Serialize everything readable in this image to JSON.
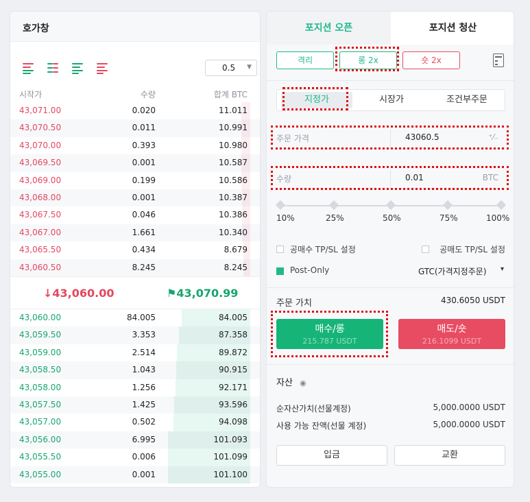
{
  "order_book": {
    "title": "호가창",
    "depth_value": "0.5",
    "headers": {
      "price": "시작가",
      "qty": "수량",
      "total": "합계 BTC"
    },
    "asks": [
      {
        "price": "43,071.00",
        "qty": "0.020",
        "total": "11.011",
        "depth": 0.11
      },
      {
        "price": "43,070.50",
        "qty": "0.011",
        "total": "10.991",
        "depth": 0.11
      },
      {
        "price": "43,070.00",
        "qty": "0.393",
        "total": "10.980",
        "depth": 0.11
      },
      {
        "price": "43,069.50",
        "qty": "0.001",
        "total": "10.587",
        "depth": 0.105
      },
      {
        "price": "43,069.00",
        "qty": "0.199",
        "total": "10.586",
        "depth": 0.105
      },
      {
        "price": "43,068.00",
        "qty": "0.001",
        "total": "10.387",
        "depth": 0.103
      },
      {
        "price": "43,067.50",
        "qty": "0.046",
        "total": "10.386",
        "depth": 0.103
      },
      {
        "price": "43,067.00",
        "qty": "1.661",
        "total": "10.340",
        "depth": 0.102
      },
      {
        "price": "43,065.50",
        "qty": "0.434",
        "total": "8.679",
        "depth": 0.086
      },
      {
        "price": "43,060.50",
        "qty": "8.245",
        "total": "8.245",
        "depth": 0.082
      }
    ],
    "last_price": "↓43,060.00",
    "mark_price": "⚑43,070.99",
    "bids": [
      {
        "price": "43,060.00",
        "qty": "84.005",
        "total": "84.005",
        "depth": 0.83
      },
      {
        "price": "43,059.50",
        "qty": "3.353",
        "total": "87.358",
        "depth": 0.864
      },
      {
        "price": "43,059.00",
        "qty": "2.514",
        "total": "89.872",
        "depth": 0.889
      },
      {
        "price": "43,058.50",
        "qty": "1.043",
        "total": "90.915",
        "depth": 0.9
      },
      {
        "price": "43,058.00",
        "qty": "1.256",
        "total": "92.171",
        "depth": 0.912
      },
      {
        "price": "43,057.50",
        "qty": "1.425",
        "total": "93.596",
        "depth": 0.926
      },
      {
        "price": "43,057.00",
        "qty": "0.502",
        "total": "94.098",
        "depth": 0.931
      },
      {
        "price": "43,056.00",
        "qty": "6.995",
        "total": "101.093",
        "depth": 1.0
      },
      {
        "price": "43,055.50",
        "qty": "0.006",
        "total": "101.099",
        "depth": 1.0
      },
      {
        "price": "43,055.00",
        "qty": "0.001",
        "total": "101.100",
        "depth": 1.0
      }
    ]
  },
  "order_form": {
    "tab_open": "포지션 오픈",
    "tab_close": "포지션 청산",
    "margin_mode": "격리",
    "long_leverage": "롱 2x",
    "short_leverage": "숏 2x",
    "order_types": [
      "지정가",
      "시장가",
      "조건부주문"
    ],
    "price_label": "주문 가격",
    "price_value": "43060.5",
    "price_icon": "⁺⁄₋",
    "qty_label": "수량",
    "qty_value": "0.01",
    "qty_unit": "BTC",
    "slider_labels": [
      "10%",
      "25%",
      "50%",
      "75%",
      "100%"
    ],
    "tp_sl_buy": "공매수 TP/SL 설정",
    "tp_sl_sell": "공매도 TP/SL 설정",
    "post_only": "Post-Only",
    "tif": "GTC(가격지정주문)",
    "tif_caret": "▾",
    "order_value_label": "주문 가치",
    "order_value": "430.6050 USDT",
    "buy_label": "매수/롱",
    "buy_sub": "215.787 USDT",
    "sell_label": "매도/숏",
    "sell_sub": "216.1099 USDT"
  },
  "assets": {
    "title": "자산",
    "eye_icon": "◉",
    "net_label": "순자산가치(선물계정)",
    "net_value": "5,000.0000 USDT",
    "avail_label": "사용 가능 잔액(선물 계정)",
    "avail_value": "5,000.0000 USDT",
    "deposit": "입금",
    "exchange": "교환"
  },
  "colors": {
    "accent_green": "#1fb98a",
    "bid_green": "#16a66e",
    "ask_red": "#e4475f",
    "buy_button": "#17b478",
    "sell_button": "#e84c62",
    "highlight": "#e01010"
  }
}
